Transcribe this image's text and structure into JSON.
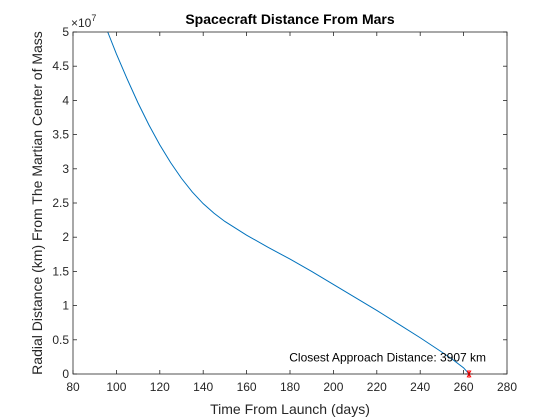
{
  "chart_data": {
    "type": "line",
    "title": "Spacecraft Distance From Mars",
    "xlabel": "Time From Launch (days)",
    "ylabel": "Radial Distance (km) From The Martian Center of Mass",
    "xlim": [
      80,
      280
    ],
    "ylim": [
      0,
      50000000
    ],
    "x_ticks": [
      80,
      100,
      120,
      140,
      160,
      180,
      200,
      220,
      240,
      260,
      280
    ],
    "y_ticks": [
      0,
      0.5,
      1,
      1.5,
      2,
      2.5,
      3,
      3.5,
      4,
      4.5,
      5
    ],
    "y_tick_labels": [
      "0",
      "0.5",
      "1",
      "1.5",
      "2",
      "2.5",
      "3",
      "3.5",
      "4",
      "4.5",
      "5"
    ],
    "y_exponent_base": "×10",
    "y_exponent_power": "7",
    "grid": false,
    "series": [
      {
        "color": "#0072BD",
        "x": [
          96,
          100,
          105,
          110,
          115,
          120,
          125,
          130,
          135,
          140,
          145,
          150,
          160,
          170,
          180,
          190,
          200,
          210,
          220,
          230,
          240,
          250,
          255,
          260,
          262.5
        ],
        "y": [
          50000000,
          46800000,
          43100000,
          39600000,
          36400000,
          33500000,
          30900000,
          28600000,
          26600000,
          24900000,
          23500000,
          22300000,
          20300000,
          18500000,
          16800000,
          15000000,
          13100000,
          11200000,
          9300000,
          7300000,
          5300000,
          3200000,
          2100000,
          900000,
          3907
        ]
      }
    ],
    "marker": {
      "x": 262.5,
      "y": 3907,
      "symbol": "*",
      "color": "#ff0000"
    },
    "annotation": {
      "text": "Closest Approach Distance: 3907 km",
      "x": 225,
      "y": 1800000
    }
  }
}
